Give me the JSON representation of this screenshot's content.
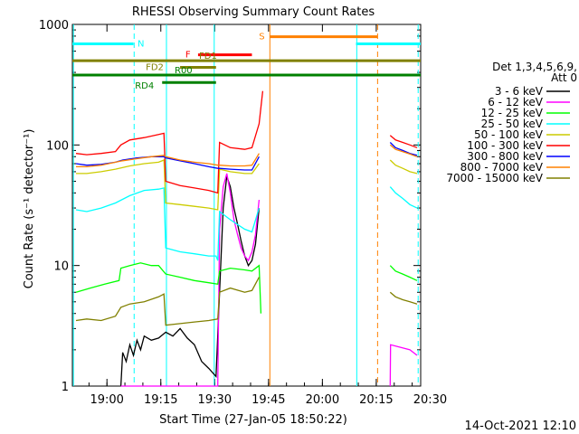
{
  "chart_data": {
    "type": "line",
    "title": "RHESSI Observing Summary Count Rates",
    "xlabel": "Start Time (27-Jan-05 18:50:22)",
    "ylabel": "Count Rate (s⁻¹ detector⁻¹)",
    "timestamp": "14-Oct-2021 12:10",
    "x_units": "minutes after 18:50:22",
    "xlim": [
      0,
      97
    ],
    "ylim": [
      1,
      1000
    ],
    "y_scale": "log",
    "x_ticks": [
      {
        "t": 9.63,
        "label": "19:00"
      },
      {
        "t": 24.63,
        "label": "19:15"
      },
      {
        "t": 39.63,
        "label": "19:30"
      },
      {
        "t": 54.63,
        "label": "19:45"
      },
      {
        "t": 69.63,
        "label": "20:00"
      },
      {
        "t": 84.63,
        "label": "20:15"
      },
      {
        "t": 99.63,
        "label": "20:30"
      }
    ],
    "y_ticks": [
      {
        "v": 1,
        "label": "1"
      },
      {
        "v": 10,
        "label": "10"
      },
      {
        "v": 100,
        "label": "100"
      },
      {
        "v": 1000,
        "label": "1000"
      }
    ],
    "legend": {
      "header": [
        "Det 1,3,4,5,6,9,",
        "Att 0"
      ],
      "placement": "right"
    },
    "series": [
      {
        "name": "3 - 6 keV",
        "color": "#000000",
        "segments": [
          [
            [
              13.5,
              1.0
            ],
            [
              14,
              1.9
            ],
            [
              15,
              1.6
            ],
            [
              16,
              2.2
            ],
            [
              17,
              1.8
            ],
            [
              18,
              2.4
            ],
            [
              19,
              2.0
            ],
            [
              20,
              2.6
            ],
            [
              22,
              2.4
            ],
            [
              24,
              2.5
            ],
            [
              26,
              2.8
            ],
            [
              28,
              2.6
            ],
            [
              30,
              3.0
            ],
            [
              32,
              2.5
            ],
            [
              34,
              2.2
            ],
            [
              36,
              1.6
            ],
            [
              38,
              1.4
            ],
            [
              40,
              1.2
            ],
            [
              41,
              6
            ],
            [
              42,
              30
            ],
            [
              43,
              55
            ],
            [
              44,
              45
            ],
            [
              45,
              30
            ],
            [
              46,
              22
            ],
            [
              47,
              16
            ],
            [
              48,
              12
            ],
            [
              49,
              10
            ],
            [
              50,
              11
            ],
            [
              51,
              15
            ],
            [
              52,
              30
            ]
          ]
        ]
      },
      {
        "name": "6 - 12 keV",
        "color": "#ff00ff",
        "segments": [
          [
            [
              13.5,
              1.0
            ],
            [
              40.5,
              1.0
            ],
            [
              41,
              20
            ],
            [
              42,
              45
            ],
            [
              43,
              58
            ],
            [
              44,
              40
            ],
            [
              45,
              24
            ],
            [
              46,
              18
            ],
            [
              47,
              14
            ],
            [
              48,
              12
            ],
            [
              49,
              11
            ],
            [
              50,
              13
            ],
            [
              51,
              18
            ],
            [
              52,
              35
            ]
          ],
          [
            [
              88.5,
              1.0
            ],
            [
              88.6,
              2.2
            ],
            [
              94,
              2.0
            ],
            [
              96,
              1.8
            ]
          ]
        ]
      },
      {
        "name": "12 - 25 keV",
        "color": "#00ff00",
        "segments": [
          [
            [
              1,
              6
            ],
            [
              5,
              6.5
            ],
            [
              9,
              7
            ],
            [
              13,
              7.5
            ],
            [
              13.5,
              9.5
            ],
            [
              16,
              10
            ],
            [
              19,
              10.5
            ],
            [
              22,
              10
            ],
            [
              24,
              10
            ],
            [
              26,
              8.5
            ],
            [
              30,
              8
            ],
            [
              34,
              7.5
            ],
            [
              38,
              7.2
            ],
            [
              40.5,
              7.0
            ],
            [
              41,
              9
            ],
            [
              44,
              9.5
            ],
            [
              48,
              9.2
            ],
            [
              50,
              9.0
            ],
            [
              52,
              10
            ],
            [
              52.5,
              4
            ]
          ],
          [
            [
              88.5,
              10
            ],
            [
              90,
              9
            ],
            [
              92,
              8.5
            ],
            [
              94,
              8
            ],
            [
              96,
              7.5
            ]
          ]
        ]
      },
      {
        "name": "25 - 50 keV",
        "color": "#00ffff",
        "segments": [
          [
            [
              1,
              29
            ],
            [
              4,
              28
            ],
            [
              8,
              30
            ],
            [
              12,
              33
            ],
            [
              16,
              38
            ],
            [
              20,
              42
            ],
            [
              24,
              43
            ],
            [
              25.5,
              44
            ],
            [
              26,
              14
            ],
            [
              30,
              13
            ],
            [
              34,
              12.5
            ],
            [
              38,
              12
            ],
            [
              40,
              12
            ],
            [
              40.5,
              11
            ],
            [
              41,
              28
            ],
            [
              44,
              24
            ],
            [
              48,
              20
            ],
            [
              50,
              19
            ],
            [
              52,
              30
            ]
          ],
          [
            [
              88.5,
              45
            ],
            [
              90,
              40
            ],
            [
              92,
              36
            ],
            [
              94,
              32
            ],
            [
              96,
              30
            ]
          ]
        ]
      },
      {
        "name": "50 - 100 keV",
        "color": "#cccc00",
        "segments": [
          [
            [
              1,
              58
            ],
            [
              4,
              58
            ],
            [
              8,
              60
            ],
            [
              12,
              63
            ],
            [
              16,
              67
            ],
            [
              20,
              70
            ],
            [
              24,
              72
            ],
            [
              25.5,
              75
            ],
            [
              26,
              33
            ],
            [
              30,
              32
            ],
            [
              34,
              31
            ],
            [
              38,
              30
            ],
            [
              40.5,
              29
            ],
            [
              41,
              63
            ],
            [
              44,
              60
            ],
            [
              48,
              58
            ],
            [
              50,
              58
            ],
            [
              52,
              70
            ]
          ],
          [
            [
              88.5,
              75
            ],
            [
              90,
              68
            ],
            [
              92,
              64
            ],
            [
              94,
              60
            ],
            [
              96,
              58
            ]
          ]
        ]
      },
      {
        "name": "100 - 300 keV",
        "color": "#ff0000",
        "segments": [
          [
            [
              1,
              85
            ],
            [
              4,
              83
            ],
            [
              8,
              85
            ],
            [
              12,
              88
            ],
            [
              13.5,
              100
            ],
            [
              16,
              110
            ],
            [
              20,
              115
            ],
            [
              24,
              122
            ],
            [
              25.5,
              125
            ],
            [
              26,
              50
            ],
            [
              30,
              46
            ],
            [
              34,
              44
            ],
            [
              38,
              42
            ],
            [
              40.5,
              40
            ],
            [
              41,
              105
            ],
            [
              44,
              95
            ],
            [
              48,
              92
            ],
            [
              50,
              95
            ],
            [
              52,
              150
            ],
            [
              53,
              280
            ]
          ],
          [
            [
              88.5,
              120
            ],
            [
              90,
              110
            ],
            [
              92,
              105
            ],
            [
              94,
              100
            ],
            [
              96,
              95
            ]
          ]
        ]
      },
      {
        "name": "300 - 800 keV",
        "color": "#0000ff",
        "segments": [
          [
            [
              1,
              70
            ],
            [
              4,
              68
            ],
            [
              8,
              69
            ],
            [
              12,
              72
            ],
            [
              14,
              75
            ],
            [
              18,
              78
            ],
            [
              22,
              80
            ],
            [
              25.5,
              80
            ],
            [
              26,
              78
            ],
            [
              30,
              74
            ],
            [
              34,
              70
            ],
            [
              38,
              66
            ],
            [
              40.5,
              64
            ],
            [
              41,
              64
            ],
            [
              44,
              63
            ],
            [
              48,
              62
            ],
            [
              50,
              62
            ],
            [
              52,
              80
            ]
          ],
          [
            [
              88.5,
              105
            ],
            [
              90,
              95
            ],
            [
              92,
              90
            ],
            [
              94,
              85
            ],
            [
              96,
              82
            ]
          ]
        ]
      },
      {
        "name": "800 - 7000 keV",
        "color": "#ff8000",
        "segments": [
          [
            [
              1,
              66
            ],
            [
              4,
              66
            ],
            [
              8,
              68
            ],
            [
              12,
              72
            ],
            [
              14,
              74
            ],
            [
              18,
              77
            ],
            [
              22,
              80
            ],
            [
              25.5,
              82
            ],
            [
              26,
              80
            ],
            [
              30,
              75
            ],
            [
              34,
              72
            ],
            [
              38,
              70
            ],
            [
              40.5,
              68
            ],
            [
              41,
              68
            ],
            [
              44,
              67
            ],
            [
              48,
              67
            ],
            [
              50,
              68
            ],
            [
              52,
              85
            ]
          ],
          [
            [
              88.5,
              100
            ],
            [
              90,
              92
            ],
            [
              92,
              88
            ],
            [
              94,
              84
            ],
            [
              96,
              80
            ]
          ]
        ]
      },
      {
        "name": "7000 - 15000 keV",
        "color": "#808000",
        "segments": [
          [
            [
              1,
              3.5
            ],
            [
              4,
              3.6
            ],
            [
              8,
              3.5
            ],
            [
              12,
              3.8
            ],
            [
              13.5,
              4.5
            ],
            [
              16,
              4.8
            ],
            [
              20,
              5.0
            ],
            [
              24,
              5.5
            ],
            [
              25.5,
              5.8
            ],
            [
              26,
              3.2
            ],
            [
              30,
              3.3
            ],
            [
              34,
              3.4
            ],
            [
              38,
              3.5
            ],
            [
              40.5,
              3.6
            ],
            [
              41,
              6
            ],
            [
              44,
              6.5
            ],
            [
              48,
              6.0
            ],
            [
              50,
              6.2
            ],
            [
              52,
              8
            ]
          ],
          [
            [
              88.5,
              6
            ],
            [
              90,
              5.5
            ],
            [
              92,
              5.2
            ],
            [
              94,
              5.0
            ],
            [
              96,
              4.8
            ]
          ]
        ]
      }
    ],
    "flags": [
      {
        "label": "N",
        "color": "#00ffff",
        "y": 690,
        "segments": [
          [
            0,
            17
          ],
          [
            79,
            97
          ]
        ]
      },
      {
        "label": "S",
        "color": "#ff8000",
        "y": 790,
        "segments": [
          [
            55,
            85
          ]
        ]
      },
      {
        "label": "F",
        "color": "#ff0000",
        "y": 560,
        "segments": [
          [
            35,
            50
          ]
        ]
      },
      {
        "label": "FD1",
        "color": "#808000",
        "y": 500,
        "segments": [
          [
            0,
            97
          ]
        ]
      },
      {
        "label": "FD2",
        "color": "#808000",
        "y": 440,
        "segments": [
          [
            30,
            40
          ]
        ]
      },
      {
        "label": "R00",
        "color": "#008000",
        "y": 380,
        "segments": [
          [
            0,
            97
          ]
        ]
      },
      {
        "label": "RD4",
        "color": "#008000",
        "y": 330,
        "segments": [
          [
            25,
            40
          ]
        ]
      }
    ],
    "vertical_markers": [
      {
        "t": 0.3,
        "color": "#00ffff",
        "style": "solid"
      },
      {
        "t": 17.2,
        "color": "#00ffff",
        "style": "dash"
      },
      {
        "t": 26.2,
        "color": "#00ffff",
        "style": "solid"
      },
      {
        "t": 39.5,
        "color": "#00ffff",
        "style": "solid"
      },
      {
        "t": 55.0,
        "color": "#ff8000",
        "style": "solid"
      },
      {
        "t": 79.2,
        "color": "#00ffff",
        "style": "solid"
      },
      {
        "t": 85.0,
        "color": "#ff8000",
        "style": "dash"
      },
      {
        "t": 96.3,
        "color": "#00ffff",
        "style": "dash"
      }
    ]
  }
}
